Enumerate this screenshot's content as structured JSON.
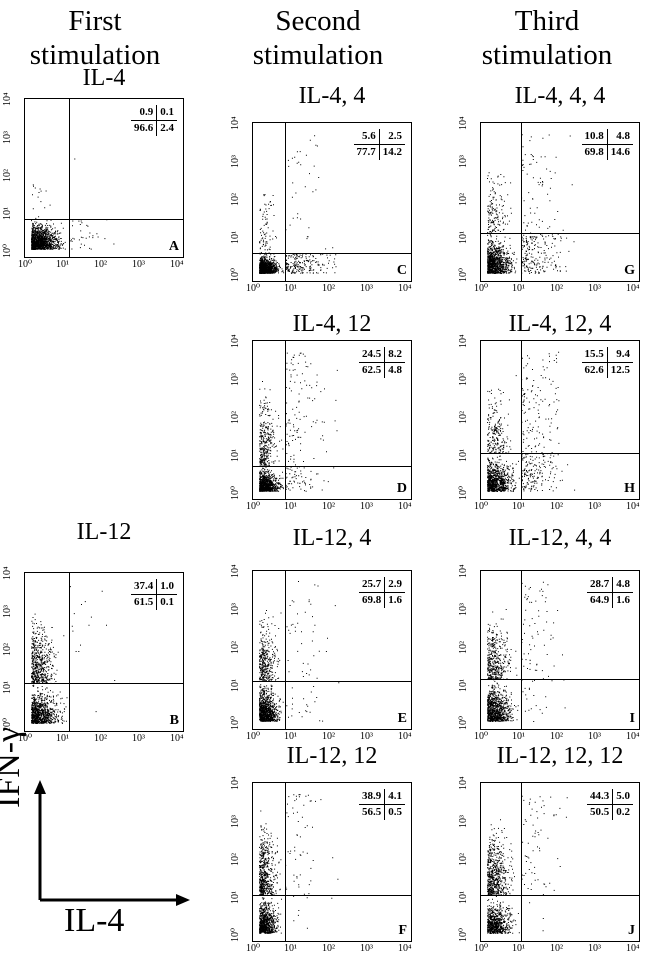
{
  "headers": [
    {
      "line1": "First",
      "line2": "stimulation"
    },
    {
      "line1": "Second",
      "line2": "stimulation"
    },
    {
      "line1": "Third",
      "line2": "stimulation"
    }
  ],
  "axis_legend": {
    "y": "IFN-γ",
    "x": "IL-4"
  },
  "chart_data": [
    {
      "type": "scatter",
      "title": "IL-4",
      "letter": "A",
      "quadrants": [
        "0.9",
        "0.1",
        "96.6",
        "2.4"
      ]
    },
    {
      "type": "scatter",
      "title": "IL-12",
      "letter": "B",
      "quadrants": [
        "37.4",
        "1.0",
        "61.5",
        "0.1"
      ]
    },
    {
      "type": "scatter",
      "title": "IL-4, 4",
      "letter": "C",
      "quadrants": [
        "5.6",
        "2.5",
        "77.7",
        "14.2"
      ]
    },
    {
      "type": "scatter",
      "title": "IL-4, 12",
      "letter": "D",
      "quadrants": [
        "24.5",
        "8.2",
        "62.5",
        "4.8"
      ]
    },
    {
      "type": "scatter",
      "title": "IL-12, 4",
      "letter": "E",
      "quadrants": [
        "25.7",
        "2.9",
        "69.8",
        "1.6"
      ]
    },
    {
      "type": "scatter",
      "title": "IL-12, 12",
      "letter": "F",
      "quadrants": [
        "38.9",
        "4.1",
        "56.5",
        "0.5"
      ]
    },
    {
      "type": "scatter",
      "title": "IL-4, 4, 4",
      "letter": "G",
      "quadrants": [
        "10.8",
        "4.8",
        "69.8",
        "14.6"
      ]
    },
    {
      "type": "scatter",
      "title": "IL-4, 12, 4",
      "letter": "H",
      "quadrants": [
        "15.5",
        "9.4",
        "62.6",
        "12.5"
      ]
    },
    {
      "type": "scatter",
      "title": "IL-12, 4, 4",
      "letter": "I",
      "quadrants": [
        "28.7",
        "4.8",
        "64.9",
        "1.6"
      ]
    },
    {
      "type": "scatter",
      "title": "IL-12, 12, 12",
      "letter": "J",
      "quadrants": [
        "44.3",
        "5.0",
        "50.5",
        "0.2"
      ]
    }
  ],
  "tick_labels": [
    "10⁰",
    "10¹",
    "10²",
    "10³",
    "10⁴"
  ]
}
